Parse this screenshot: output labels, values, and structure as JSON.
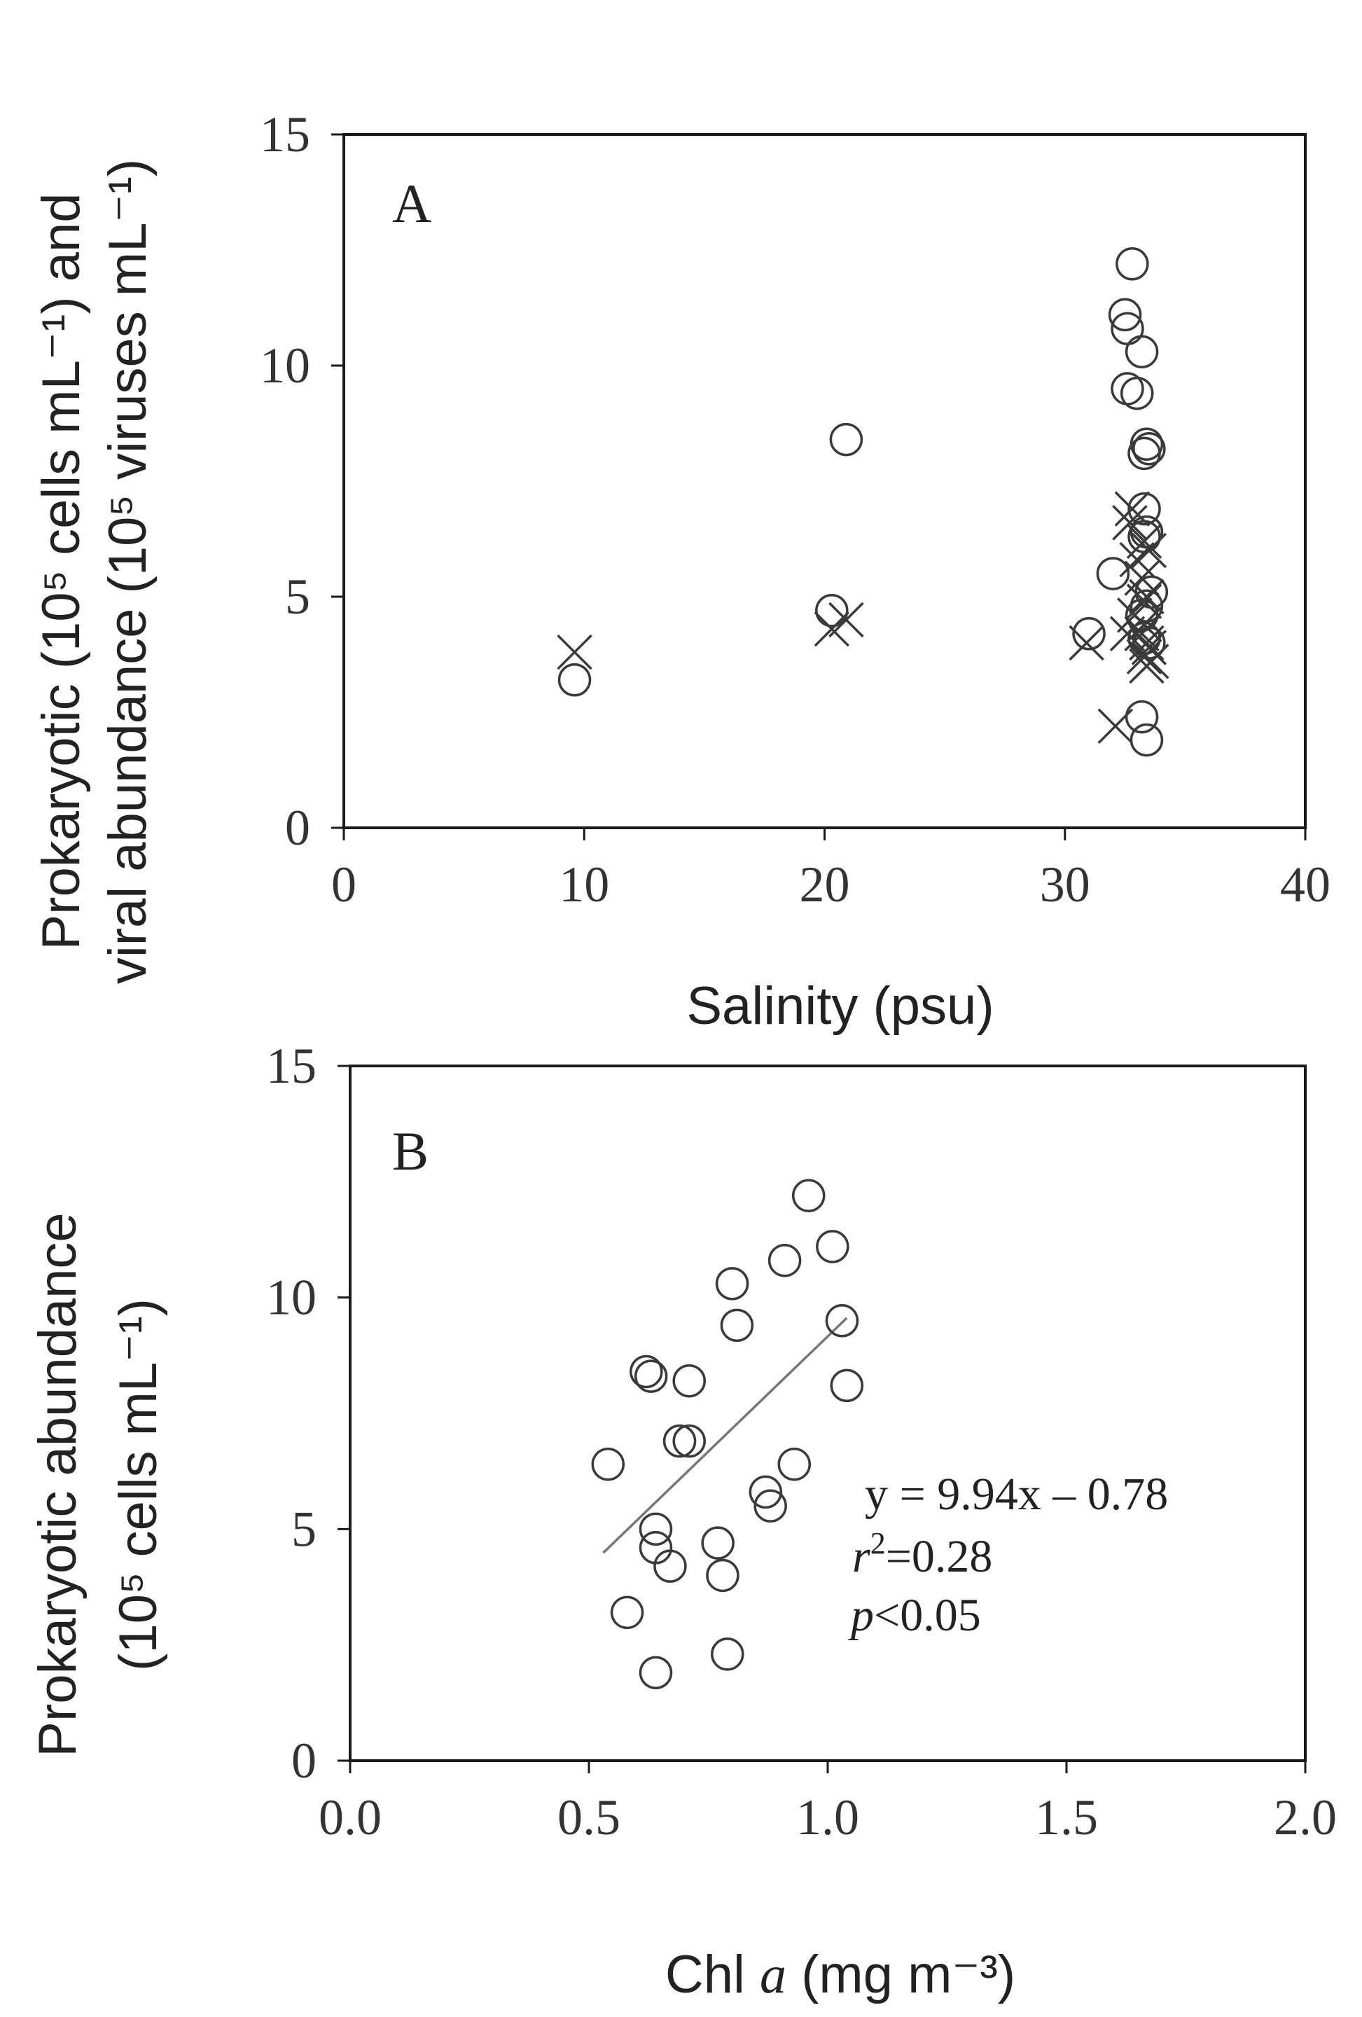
{
  "chart_data": [
    {
      "panel_label": "A",
      "type": "scatter",
      "xlabel": "Salinity (psu)",
      "ylabel_line1": "Prokaryotic (10⁵ cells mL⁻¹) and",
      "ylabel_line2": "viral abundance (10⁵ viruses mL⁻¹)",
      "xlim": [
        0,
        40
      ],
      "ylim": [
        0,
        15
      ],
      "xticks": [
        "0",
        "10",
        "20",
        "30",
        "40"
      ],
      "yticks": [
        "0",
        "5",
        "10",
        "15"
      ],
      "series": [
        {
          "name": "Prokaryotic abundance",
          "marker": "circle",
          "points": [
            [
              9.6,
              3.2
            ],
            [
              20.3,
              4.7
            ],
            [
              20.9,
              8.4
            ],
            [
              31,
              4.2
            ],
            [
              32.0,
              5.5
            ],
            [
              32.5,
              11.1
            ],
            [
              32.6,
              10.8
            ],
            [
              32.6,
              9.5
            ],
            [
              32.8,
              12.2
            ],
            [
              33.0,
              9.4
            ],
            [
              33.2,
              10.3
            ],
            [
              33.3,
              8.1
            ],
            [
              33.4,
              8.3
            ],
            [
              33.5,
              8.2
            ],
            [
              33.3,
              6.9
            ],
            [
              33.4,
              6.4
            ],
            [
              33.3,
              6.3
            ],
            [
              33.2,
              4.6
            ],
            [
              33.4,
              4.8
            ],
            [
              33.6,
              5.1
            ],
            [
              33.3,
              4.1
            ],
            [
              33.2,
              2.4
            ],
            [
              33.4,
              1.9
            ],
            [
              33.5,
              4.0
            ]
          ]
        },
        {
          "name": "Viral abundance",
          "marker": "x",
          "points": [
            [
              9.6,
              3.8
            ],
            [
              20.3,
              4.3
            ],
            [
              20.9,
              4.5
            ],
            [
              30.9,
              4.0
            ],
            [
              32.1,
              2.2
            ],
            [
              32.6,
              4.2
            ],
            [
              32.9,
              4.6
            ],
            [
              32.8,
              6.9
            ],
            [
              32.7,
              6.6
            ],
            [
              33.0,
              5.8
            ],
            [
              33.2,
              5.4
            ],
            [
              33.3,
              6.2
            ],
            [
              33.3,
              4.4
            ],
            [
              33.4,
              4.0
            ],
            [
              33.3,
              3.7
            ],
            [
              33.4,
              3.5
            ],
            [
              33.5,
              3.9
            ],
            [
              33.3,
              4.9
            ],
            [
              33.4,
              5.0
            ],
            [
              33.5,
              6.0
            ],
            [
              33.2,
              4.2
            ],
            [
              33.6,
              3.6
            ]
          ]
        }
      ]
    },
    {
      "panel_label": "B",
      "type": "scatter",
      "xlabel_main": "Chl ",
      "xlabel_italic": "a",
      "xlabel_unit": " (mg m⁻³)",
      "ylabel_line1": "Prokaryotic abundance",
      "ylabel_line2": "(10⁵ cells mL⁻¹)",
      "xlim": [
        0,
        2
      ],
      "ylim": [
        0,
        15
      ],
      "xticks": [
        "0.0",
        "0.5",
        "1.0",
        "1.5",
        "2.0"
      ],
      "yticks": [
        "0",
        "5",
        "10",
        "15"
      ],
      "series": [
        {
          "name": "Prokaryotic abundance",
          "marker": "circle",
          "points": [
            [
              0.54,
              6.4
            ],
            [
              0.58,
              3.2
            ],
            [
              0.62,
              8.4
            ],
            [
              0.63,
              8.3
            ],
            [
              0.64,
              5.0
            ],
            [
              0.64,
              4.6
            ],
            [
              0.64,
              1.9
            ],
            [
              0.67,
              4.2
            ],
            [
              0.69,
              6.9
            ],
            [
              0.71,
              8.2
            ],
            [
              0.71,
              6.9
            ],
            [
              0.77,
              4.7
            ],
            [
              0.78,
              4.0
            ],
            [
              0.79,
              2.3
            ],
            [
              0.8,
              10.3
            ],
            [
              0.81,
              9.4
            ],
            [
              0.87,
              5.8
            ],
            [
              0.88,
              5.5
            ],
            [
              0.91,
              10.8
            ],
            [
              0.93,
              6.4
            ],
            [
              0.96,
              12.2
            ],
            [
              1.01,
              11.1
            ],
            [
              1.03,
              9.5
            ],
            [
              1.04,
              8.1
            ]
          ]
        }
      ],
      "trendline": {
        "slope": 9.94,
        "intercept": -0.78,
        "x_range": [
          0.53,
          1.04
        ]
      },
      "annotations": {
        "equation": "y = 9.94x – 0.78",
        "r2_symbol": "r",
        "r2_exp": "2",
        "r2_value": "=0.28",
        "p_symbol": "p",
        "p_value": "<0.05"
      }
    }
  ]
}
